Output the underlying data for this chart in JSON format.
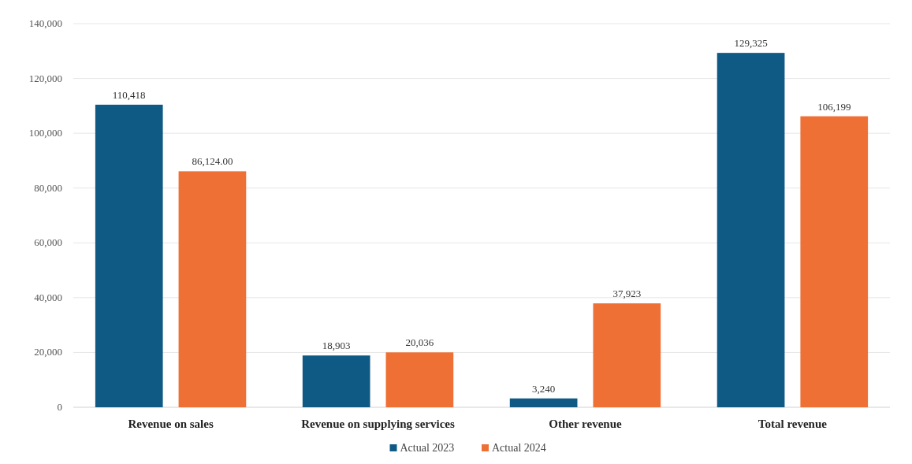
{
  "chart_data": {
    "type": "bar",
    "categories": [
      "Revenue on sales",
      "Revenue on supplying services",
      "Other revenue",
      "Total revenue"
    ],
    "series": [
      {
        "name": "Actual 2023",
        "color": "#0f5a85",
        "values": [
          110418,
          18903,
          3240,
          129325
        ],
        "value_labels": [
          "110,418",
          "18,903",
          "3,240",
          "129,325"
        ]
      },
      {
        "name": "Actual 2024",
        "color": "#ee7035",
        "values": [
          86124,
          20036,
          37923,
          106199
        ],
        "value_labels": [
          "86,124.00",
          "20,036",
          "37,923",
          "106,199"
        ]
      }
    ],
    "ylim": [
      0,
      140000
    ],
    "yticks": [
      {
        "value": 0,
        "label": "0"
      },
      {
        "value": 20000,
        "label": "20,000"
      },
      {
        "value": 40000,
        "label": "40,000"
      },
      {
        "value": 60000,
        "label": "60,000"
      },
      {
        "value": 80000,
        "label": "80,000"
      },
      {
        "value": 100000,
        "label": "100,000"
      },
      {
        "value": 120000,
        "label": "120,000"
      },
      {
        "value": 140000,
        "label": "140,000"
      }
    ],
    "grid": "y",
    "legend": "bottom"
  }
}
